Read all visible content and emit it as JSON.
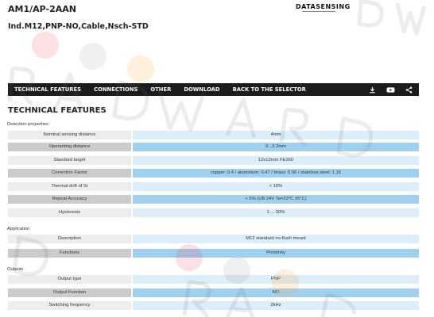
{
  "product": {
    "code": "AM1/AP-2AAN",
    "description": "Ind.M12,PNP-NO,Cable,Nsch-STD"
  },
  "brand": {
    "name": "DATASENSING"
  },
  "nav": {
    "items": [
      "TECHNICAL FEATURES",
      "CONNECTIONS",
      "OTHER",
      "DOWNLOAD",
      "BACK TO THE SELECTOR"
    ],
    "icons": [
      "download-icon",
      "video-icon",
      "share-icon"
    ]
  },
  "section_title": "TECHNICAL FEATURES",
  "groups": [
    {
      "title": "Detection properties",
      "rows": [
        {
          "label": "Nominal sensing distance",
          "value": "4mm"
        },
        {
          "label": "Operanting distance",
          "value": "0...3.2mm"
        },
        {
          "label": "Standard target",
          "value": "12x12mm FE360"
        },
        {
          "label": "Correction Factor",
          "value": "copper: 0.4 / aluminium: 0.47 / brass: 0.56 / stainless steel: 1.15"
        },
        {
          "label": "Thermal drift of Sr",
          "value": "< 10%"
        },
        {
          "label": "Repeat Accuracy",
          "value": "< 5% (UB 24V Ta=23°C ±5°C)"
        },
        {
          "label": "Hysteresis",
          "value": "1 ... 20%"
        }
      ]
    },
    {
      "title": "Application",
      "rows": [
        {
          "label": "Description",
          "value": "M12 standard no-flush mount"
        },
        {
          "label": "Functions",
          "value": "Proximity"
        }
      ]
    },
    {
      "title": "Outputs",
      "rows": [
        {
          "label": "Output type",
          "value": "PNP"
        },
        {
          "label": "Output Function",
          "value": "NO"
        },
        {
          "label": "Switching frequency",
          "value": "2kHz"
        }
      ]
    }
  ],
  "colors": {
    "nav_bg": "#1c1c1c",
    "label_alt": "#cbcbcb",
    "value_alt": "#9fd0ef",
    "label_base": "#ededed",
    "value_base": "#dbeefa"
  }
}
